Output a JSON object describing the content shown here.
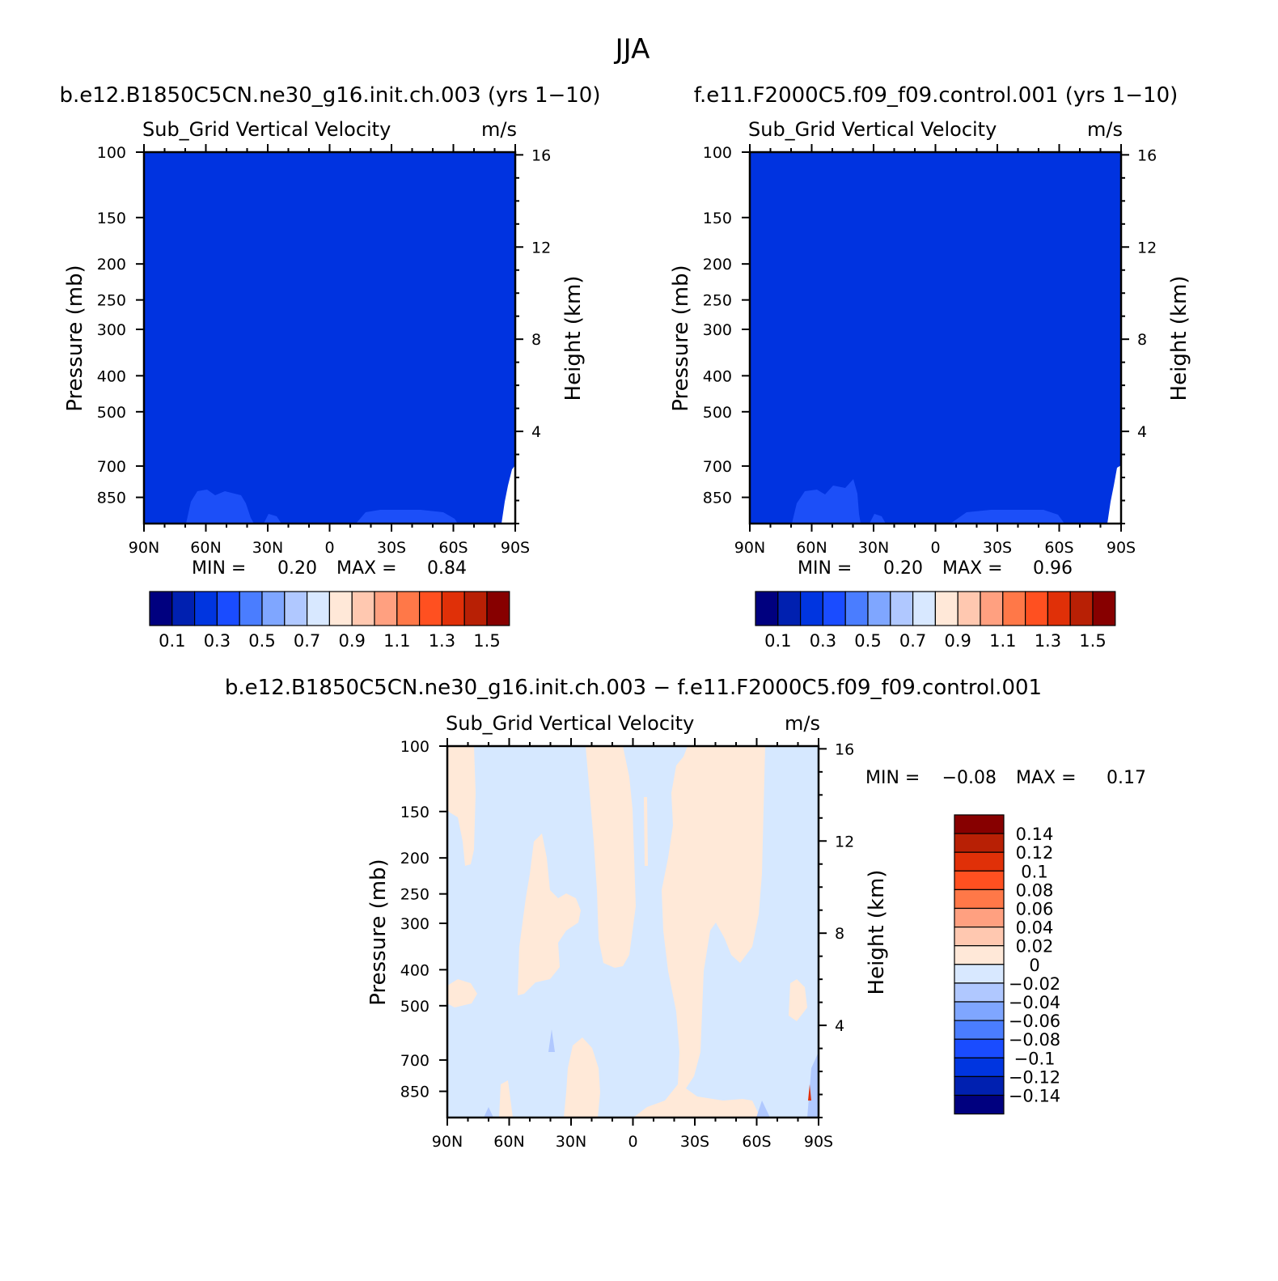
{
  "figure_title": "JJA",
  "chart_data": [
    {
      "type": "heatmap",
      "panel": "left",
      "case_title": "b.e12.B1850C5CN.ne30_g16.init.ch.003 (yrs 1-10)",
      "variable": "Sub_Grid Vertical Velocity",
      "units": "m/s",
      "ylabel": "Pressure (mb)",
      "ylabel_right": "Height (km)",
      "x_tick_labels": [
        "90N",
        "60N",
        "30N",
        "0",
        "30S",
        "60S",
        "90S"
      ],
      "x_ticks": [
        90,
        60,
        30,
        0,
        -30,
        -60,
        -90
      ],
      "xlim": [
        90,
        -90
      ],
      "y_ticks": [
        100,
        150,
        200,
        250,
        300,
        400,
        500,
        700,
        850
      ],
      "ylim": [
        100,
        1000
      ],
      "height_ticks": [
        16,
        12,
        8,
        4
      ],
      "min_label": "MIN =",
      "min_value": "0.20",
      "max_label": "MAX =",
      "max_value": "0.84",
      "levels": [
        0.1,
        0.2,
        0.3,
        0.4,
        0.5,
        0.6,
        0.7,
        0.8,
        0.9,
        1.0,
        1.1,
        1.2,
        1.3,
        1.4,
        1.5
      ],
      "colorbar_labels": [
        "0.1",
        "0.3",
        "0.5",
        "0.7",
        "0.9",
        "1.1",
        "1.3",
        "1.5"
      ],
      "fill_dominant": "0.2-0.3",
      "fill_near_surface": "0.3-0.4"
    },
    {
      "type": "heatmap",
      "panel": "right",
      "case_title": "f.e11.F2000C5.f09_f09.control.001 (yrs 1-10)",
      "variable": "Sub_Grid Vertical Velocity",
      "units": "m/s",
      "ylabel": "Pressure (mb)",
      "ylabel_right": "Height (km)",
      "x_tick_labels": [
        "90N",
        "60N",
        "30N",
        "0",
        "30S",
        "60S",
        "90S"
      ],
      "x_ticks": [
        90,
        60,
        30,
        0,
        -30,
        -60,
        -90
      ],
      "xlim": [
        90,
        -90
      ],
      "y_ticks": [
        100,
        150,
        200,
        250,
        300,
        400,
        500,
        700,
        850
      ],
      "ylim": [
        100,
        1000
      ],
      "height_ticks": [
        16,
        12,
        8,
        4
      ],
      "min_label": "MIN =",
      "min_value": "0.20",
      "max_label": "MAX =",
      "max_value": "0.96",
      "levels": [
        0.1,
        0.2,
        0.3,
        0.4,
        0.5,
        0.6,
        0.7,
        0.8,
        0.9,
        1.0,
        1.1,
        1.2,
        1.3,
        1.4,
        1.5
      ],
      "colorbar_labels": [
        "0.1",
        "0.3",
        "0.5",
        "0.7",
        "0.9",
        "1.1",
        "1.3",
        "1.5"
      ],
      "fill_dominant": "0.2-0.3",
      "fill_near_surface": "0.3-0.4"
    },
    {
      "type": "heatmap",
      "panel": "difference",
      "case_title": "b.e12.B1850C5CN.ne30_g16.init.ch.003 - f.e11.F2000C5.f09_f09.control.001",
      "variable": "Sub_Grid Vertical Velocity",
      "units": "m/s",
      "ylabel": "Pressure (mb)",
      "ylabel_right": "Height (km)",
      "x_tick_labels": [
        "90N",
        "60N",
        "30N",
        "0",
        "30S",
        "60S",
        "90S"
      ],
      "x_ticks": [
        90,
        60,
        30,
        0,
        -30,
        -60,
        -90
      ],
      "xlim": [
        90,
        -90
      ],
      "y_ticks": [
        100,
        150,
        200,
        250,
        300,
        400,
        500,
        700,
        850
      ],
      "ylim": [
        100,
        1000
      ],
      "height_ticks": [
        16,
        12,
        8,
        4
      ],
      "min_label": "MIN =",
      "min_value": "-0.08",
      "max_label": "MAX =",
      "max_value": "0.17",
      "levels": [
        -0.14,
        -0.12,
        -0.1,
        -0.08,
        -0.06,
        -0.04,
        -0.02,
        0,
        0.02,
        0.04,
        0.06,
        0.08,
        0.1,
        0.12,
        0.14
      ],
      "colorbar_labels": [
        "0.14",
        "0.12",
        "0.1",
        "0.08",
        "0.06",
        "0.04",
        "0.02",
        "0",
        "-0.02",
        "-0.04",
        "-0.06",
        "-0.08",
        "-0.1",
        "-0.12",
        "-0.14"
      ],
      "fill_dominant": "-0.02-0",
      "fill_positive_regions": "0-0.02"
    }
  ],
  "colors": {
    "blue_red_16": [
      "#00007f",
      "#0020b0",
      "#0035e0",
      "#1a4cff",
      "#4a7dff",
      "#7fa6ff",
      "#b0c8ff",
      "#d8e8ff",
      "#ffe8d8",
      "#ffc8b0",
      "#ffa080",
      "#ff7848",
      "#ff5020",
      "#e03008",
      "#b82005",
      "#870000"
    ],
    "left_main": "#0033e0",
    "near_surface": "#1c4ff8",
    "diff_neg": "#d6e8ff",
    "diff_pos": "#ffe9d8"
  }
}
